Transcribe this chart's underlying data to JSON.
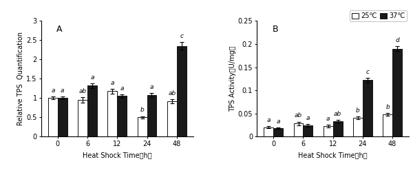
{
  "categories": [
    "0",
    "6",
    "12",
    "24",
    "48"
  ],
  "panel_A": {
    "title": "A",
    "ylabel": "Relative TPS  Quantification",
    "xlabel": "Heat Shock Time（h）",
    "ylim": [
      0,
      3.0
    ],
    "yticks": [
      0,
      0.5,
      1.0,
      1.5,
      2.0,
      2.5,
      3.0
    ],
    "white_bars": [
      1.0,
      0.95,
      1.18,
      0.5,
      0.92
    ],
    "black_bars": [
      1.0,
      1.32,
      1.05,
      1.08,
      2.35
    ],
    "white_err": [
      0.04,
      0.07,
      0.06,
      0.03,
      0.05
    ],
    "black_err": [
      0.04,
      0.06,
      0.04,
      0.05,
      0.1
    ],
    "white_labels": [
      "a",
      "ab",
      "a",
      "b",
      "ab"
    ],
    "black_labels": [
      "a",
      "a",
      "a",
      "a",
      "c"
    ]
  },
  "panel_B": {
    "title": "B",
    "ylabel": "TPS Activity（U/mg）",
    "xlabel": "Heat Shock Time（h）",
    "ylim": [
      0,
      0.25
    ],
    "yticks": [
      0,
      0.05,
      0.1,
      0.15,
      0.2,
      0.25
    ],
    "white_bars": [
      0.02,
      0.028,
      0.022,
      0.04,
      0.048
    ],
    "black_bars": [
      0.018,
      0.024,
      0.033,
      0.122,
      0.19
    ],
    "white_err": [
      0.002,
      0.004,
      0.003,
      0.003,
      0.003
    ],
    "black_err": [
      0.002,
      0.003,
      0.003,
      0.005,
      0.005
    ],
    "white_labels": [
      "a",
      "ab",
      "a",
      "b",
      "b"
    ],
    "black_labels": [
      "a",
      "a",
      "ab",
      "c",
      "d"
    ]
  },
  "legend_labels": [
    "25℃",
    "37℃"
  ],
  "bar_width": 0.32,
  "white_color": "#ffffff",
  "black_color": "#1a1a1a",
  "edge_color": "#111111",
  "label_fontsize": 7,
  "tick_fontsize": 7,
  "annot_fontsize": 6.5,
  "title_fontsize": 9
}
